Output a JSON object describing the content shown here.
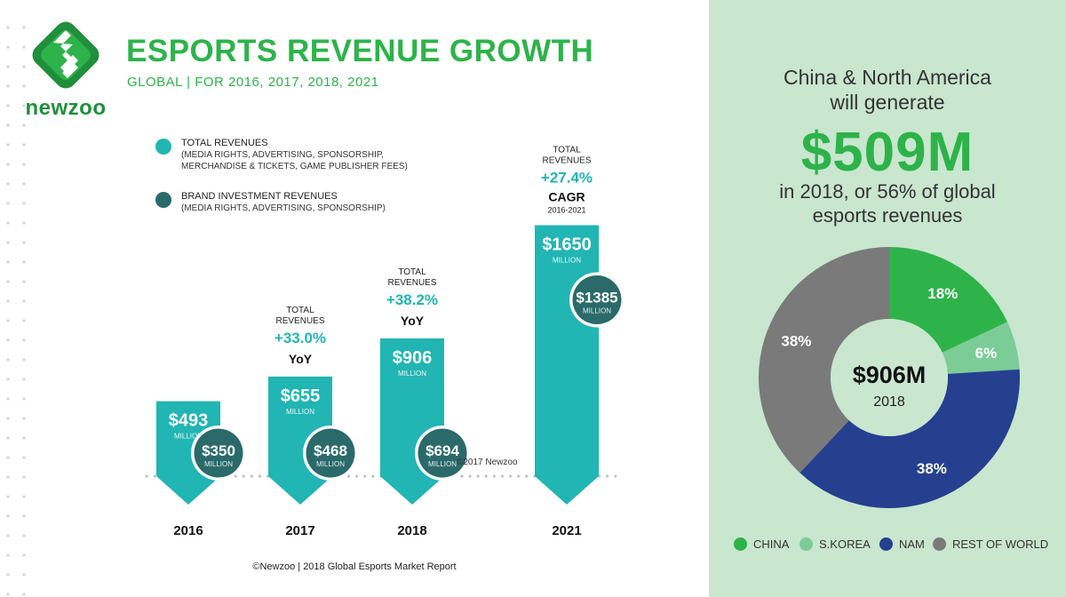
{
  "header": {
    "title": "ESPORTS REVENUE GROWTH",
    "subtitle": "GLOBAL | FOR 2016, 2017, 2018, 2021",
    "logo_text": "newzoo"
  },
  "legend": [
    {
      "name": "TOTAL REVENUES",
      "detail_1": "(MEDIA RIGHTS, ADVERTISING, SPONSORSHIP,",
      "detail_2": "MERCHANDISE & TICKETS, GAME PUBLISHER FEES)",
      "color": "#21b5b3"
    },
    {
      "name": "BRAND INVESTMENT REVENUES",
      "detail_1": "(MEDIA RIGHTS, ADVERTISING, SPONSORSHIP)",
      "detail_2": "",
      "color": "#2b6a6a"
    }
  ],
  "colors": {
    "total": "#21b5b3",
    "brand": "#2b6a6a",
    "accent": "#2db34a",
    "growth": "#21b5b3"
  },
  "chart_data": [
    {
      "type": "bar",
      "categories": [
        "2016",
        "2017",
        "2018",
        "2021"
      ],
      "series": [
        {
          "name": "TOTAL REVENUES",
          "values": [
            493,
            655,
            906,
            1650
          ]
        },
        {
          "name": "BRAND INVESTMENT REVENUES",
          "values": [
            350,
            468,
            694,
            1385
          ]
        }
      ],
      "unit": "MILLION",
      "value_labels": {
        "total": [
          "$493",
          "$655",
          "$906",
          "$1650"
        ],
        "brand": [
          "$350",
          "$468",
          "$694",
          "$1385"
        ]
      },
      "annotations": [
        null,
        {
          "head": "TOTAL",
          "head2": "REVENUES",
          "pct": "+33.0%",
          "kind": "YoY",
          "sub": ""
        },
        {
          "head": "TOTAL",
          "head2": "REVENUES",
          "pct": "+38.2%",
          "kind": "YoY",
          "sub": ""
        },
        {
          "head": "TOTAL",
          "head2": "REVENUES",
          "pct": "+27.4%",
          "kind": "CAGR",
          "sub": "2016-2021"
        }
      ],
      "copyright": "©2017 Newzoo"
    },
    {
      "type": "pie",
      "labels": [
        "CHINA",
        "S.KOREA",
        "NAM",
        "REST OF WORLD"
      ],
      "values": [
        18,
        6,
        38,
        38
      ],
      "value_labels": [
        "18%",
        "6%",
        "38%",
        "38%"
      ],
      "colors": [
        "#2db34a",
        "#7ccc98",
        "#25408f",
        "#7a7a7a"
      ],
      "center_value": "$906M",
      "center_label": "2018",
      "legend_position": "bottom"
    }
  ],
  "callout": {
    "line1": "China & North America",
    "line2": "will generate",
    "big": "$509M",
    "line3": "in 2018, or 56% of global",
    "line4": "esports revenues"
  },
  "footer": "©Newzoo | 2018 Global Esports Market Report"
}
